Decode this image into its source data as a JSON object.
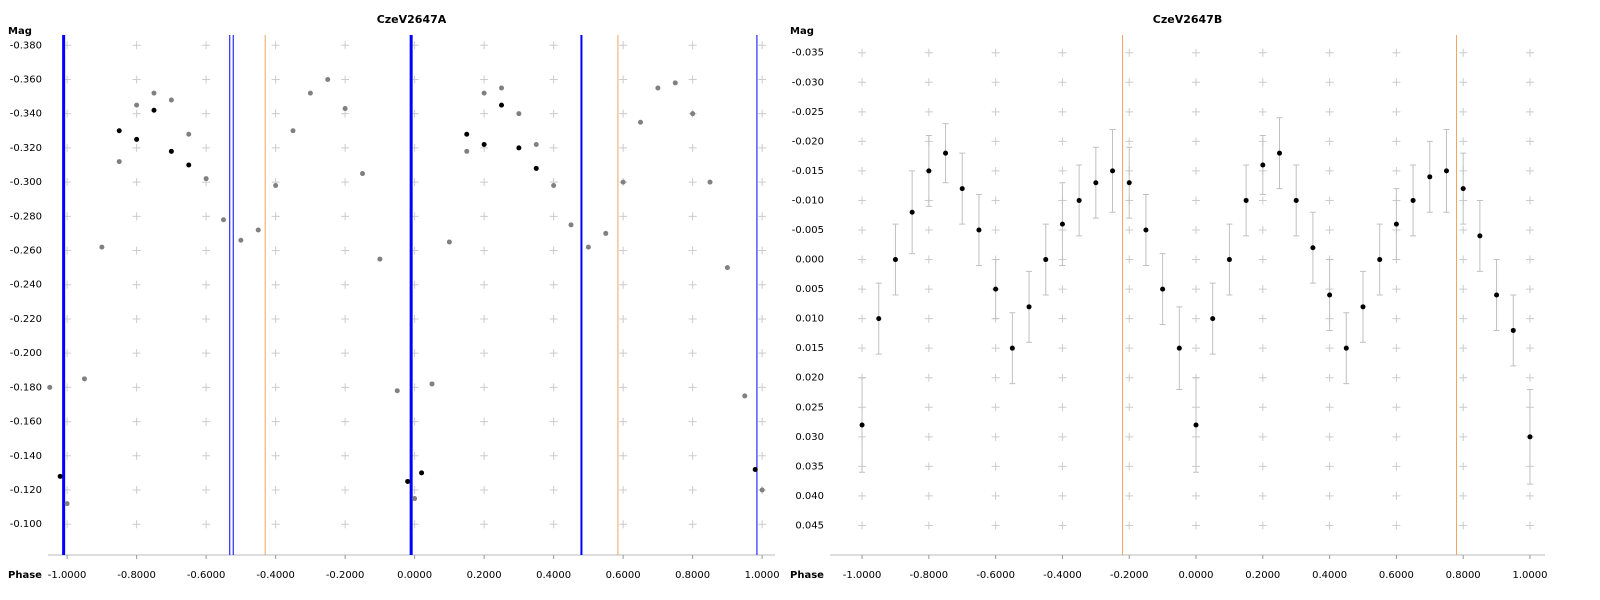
{
  "chart_data": [
    {
      "type": "scatter",
      "title": "CzeV2647A",
      "x_label": "Phase",
      "y_label": "Mag",
      "xlim": [
        -1.055,
        1.037
      ],
      "ylim": [
        -0.082,
        -0.386
      ],
      "xticks": [
        {
          "value": -1,
          "label": "-1.0000"
        },
        {
          "value": -0.8,
          "label": "-0.8000"
        },
        {
          "value": -0.6,
          "label": "-0.6000"
        },
        {
          "value": -0.4,
          "label": "-0.4000"
        },
        {
          "value": -0.2,
          "label": "-0.2000"
        },
        {
          "value": 0,
          "label": "0.0000"
        },
        {
          "value": 0.2,
          "label": "0.2000"
        },
        {
          "value": 0.4,
          "label": "0.4000"
        },
        {
          "value": 0.6,
          "label": "0.6000"
        },
        {
          "value": 0.8,
          "label": "0.8000"
        },
        {
          "value": 1,
          "label": "1.0000"
        }
      ],
      "yticks": [
        {
          "value": -0.38,
          "label": "-0.380"
        },
        {
          "value": -0.36,
          "label": "-0.360"
        },
        {
          "value": -0.34,
          "label": "-0.340"
        },
        {
          "value": -0.32,
          "label": "-0.320"
        },
        {
          "value": -0.3,
          "label": "-0.300"
        },
        {
          "value": -0.28,
          "label": "-0.280"
        },
        {
          "value": -0.26,
          "label": "-0.260"
        },
        {
          "value": -0.24,
          "label": "-0.240"
        },
        {
          "value": -0.22,
          "label": "-0.220"
        },
        {
          "value": -0.2,
          "label": "-0.200"
        },
        {
          "value": -0.18,
          "label": "-0.180"
        },
        {
          "value": -0.16,
          "label": "-0.160"
        },
        {
          "value": -0.14,
          "label": "-0.140"
        },
        {
          "value": -0.12,
          "label": "-0.120"
        },
        {
          "value": -0.1,
          "label": "-0.100"
        }
      ],
      "grid": true,
      "vertical_lines": [
        {
          "x": -1.01,
          "color": "#0000ff",
          "width": 3
        },
        {
          "x": -0.532,
          "color": "#0000ff",
          "width": 1
        },
        {
          "x": -0.522,
          "color": "#0000ff",
          "width": 1
        },
        {
          "x": -0.43,
          "color": "#f4a460",
          "width": 1
        },
        {
          "x": -0.01,
          "color": "#0000ff",
          "width": 3
        },
        {
          "x": 0.48,
          "color": "#0000ff",
          "width": 2
        },
        {
          "x": 0.585,
          "color": "#f4a460",
          "width": 1
        },
        {
          "x": 0.985,
          "color": "#0000ff",
          "width": 1
        }
      ],
      "series": [
        {
          "color": "#808080",
          "x": [
            -1.05,
            -1.0,
            -0.95,
            -0.9,
            -0.85,
            -0.8,
            -0.75,
            -0.7,
            -0.65,
            -0.6,
            -0.55,
            -0.5,
            -0.45,
            -0.4,
            -0.35,
            -0.3,
            -0.25,
            -0.2,
            -0.15,
            -0.1,
            -0.05,
            0.0,
            0.05,
            0.1,
            0.15,
            0.2,
            0.25,
            0.3,
            0.35,
            0.4,
            0.45,
            0.5,
            0.55,
            0.6,
            0.65,
            0.7,
            0.75,
            0.8,
            0.85,
            0.9,
            0.95,
            1.0
          ],
          "values": [
            -0.18,
            -0.112,
            -0.185,
            -0.262,
            -0.312,
            -0.345,
            -0.352,
            -0.348,
            -0.328,
            -0.302,
            -0.278,
            -0.266,
            -0.272,
            -0.298,
            -0.33,
            -0.352,
            -0.36,
            -0.343,
            -0.305,
            -0.255,
            -0.178,
            -0.115,
            -0.182,
            -0.265,
            -0.318,
            -0.352,
            -0.355,
            -0.34,
            -0.322,
            -0.298,
            -0.275,
            -0.262,
            -0.27,
            -0.3,
            -0.335,
            -0.355,
            -0.358,
            -0.34,
            -0.3,
            -0.25,
            -0.175,
            -0.12
          ]
        },
        {
          "color": "#000000",
          "x": [
            -1.02,
            -0.85,
            -0.8,
            -0.75,
            -0.7,
            -0.65,
            -0.02,
            0.02,
            0.15,
            0.2,
            0.25,
            0.3,
            0.35,
            0.98
          ],
          "values": [
            -0.128,
            -0.33,
            -0.325,
            -0.342,
            -0.318,
            -0.31,
            -0.125,
            -0.13,
            -0.328,
            -0.322,
            -0.345,
            -0.32,
            -0.308,
            -0.132
          ]
        }
      ]
    },
    {
      "type": "scatter",
      "title": "CzeV2647B",
      "x_label": "Phase",
      "y_label": "Mag",
      "xlim": [
        -1.096,
        1.045
      ],
      "ylim": [
        0.05,
        -0.038
      ],
      "xticks": [
        {
          "value": -1,
          "label": "-1.0000"
        },
        {
          "value": -0.8,
          "label": "-0.8000"
        },
        {
          "value": -0.6,
          "label": "-0.6000"
        },
        {
          "value": -0.4,
          "label": "-0.4000"
        },
        {
          "value": -0.2,
          "label": "-0.2000"
        },
        {
          "value": 0,
          "label": "0.0000"
        },
        {
          "value": 0.2,
          "label": "0.2000"
        },
        {
          "value": 0.4,
          "label": "0.4000"
        },
        {
          "value": 0.6,
          "label": "0.6000"
        },
        {
          "value": 0.8,
          "label": "0.8000"
        },
        {
          "value": 1,
          "label": "1.0000"
        }
      ],
      "yticks": [
        {
          "value": -0.035,
          "label": "-0.035"
        },
        {
          "value": -0.03,
          "label": "-0.030"
        },
        {
          "value": -0.025,
          "label": "-0.025"
        },
        {
          "value": -0.02,
          "label": "-0.020"
        },
        {
          "value": -0.015,
          "label": "-0.015"
        },
        {
          "value": -0.01,
          "label": "-0.010"
        },
        {
          "value": -0.005,
          "label": "-0.005"
        },
        {
          "value": 0,
          "label": "0.000"
        },
        {
          "value": 0.005,
          "label": "0.005"
        },
        {
          "value": 0.01,
          "label": "0.010"
        },
        {
          "value": 0.015,
          "label": "0.015"
        },
        {
          "value": 0.02,
          "label": "0.020"
        },
        {
          "value": 0.025,
          "label": "0.025"
        },
        {
          "value": 0.03,
          "label": "0.030"
        },
        {
          "value": 0.035,
          "label": "0.035"
        },
        {
          "value": 0.04,
          "label": "0.040"
        },
        {
          "value": 0.045,
          "label": "0.045"
        }
      ],
      "grid": true,
      "vertical_lines": [
        {
          "x": -0.22,
          "color": "#f4a460",
          "width": 1
        },
        {
          "x": 0.78,
          "color": "#f4a460",
          "width": 1
        }
      ],
      "series": [
        {
          "color": "#000000",
          "error_color": "#c0c0c0",
          "x": [
            -1.0,
            -0.95,
            -0.9,
            -0.85,
            -0.8,
            -0.75,
            -0.7,
            -0.65,
            -0.6,
            -0.55,
            -0.5,
            -0.45,
            -0.4,
            -0.35,
            -0.3,
            -0.25,
            -0.2,
            -0.15,
            -0.1,
            -0.05,
            0.0,
            0.05,
            0.1,
            0.15,
            0.2,
            0.25,
            0.3,
            0.35,
            0.4,
            0.45,
            0.5,
            0.55,
            0.6,
            0.65,
            0.7,
            0.75,
            0.8,
            0.85,
            0.9,
            0.95,
            1.0
          ],
          "values": [
            0.028,
            0.01,
            0.0,
            -0.008,
            -0.015,
            -0.018,
            -0.012,
            -0.005,
            0.005,
            0.015,
            0.008,
            0.0,
            -0.006,
            -0.01,
            -0.013,
            -0.015,
            -0.013,
            -0.005,
            0.005,
            0.015,
            0.028,
            0.01,
            0.0,
            -0.01,
            -0.016,
            -0.018,
            -0.01,
            -0.002,
            0.006,
            0.015,
            0.008,
            0.0,
            -0.006,
            -0.01,
            -0.014,
            -0.015,
            -0.012,
            -0.004,
            0.006,
            0.012,
            0.03
          ],
          "errors": [
            0.008,
            0.006,
            0.006,
            0.007,
            0.006,
            0.005,
            0.006,
            0.006,
            0.005,
            0.006,
            0.006,
            0.006,
            0.007,
            0.006,
            0.006,
            0.007,
            0.006,
            0.006,
            0.006,
            0.007,
            0.008,
            0.006,
            0.006,
            0.006,
            0.005,
            0.006,
            0.006,
            0.006,
            0.006,
            0.006,
            0.006,
            0.006,
            0.006,
            0.006,
            0.006,
            0.007,
            0.006,
            0.006,
            0.006,
            0.006,
            0.008
          ]
        }
      ]
    }
  ]
}
